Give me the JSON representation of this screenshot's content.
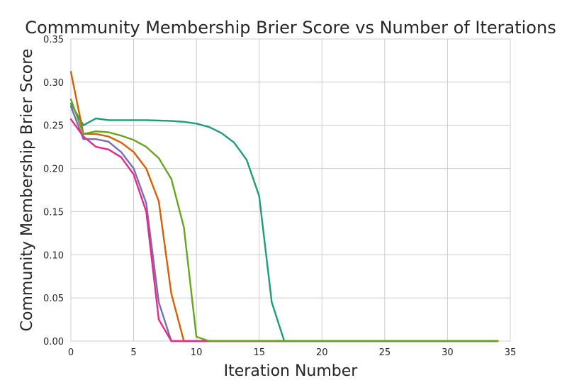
{
  "chart_data": {
    "type": "line",
    "title": "Commmunity Membership Brier Score vs Number of Iterations",
    "xlabel": "Iteration Number",
    "ylabel": "Community Membership Brier Score",
    "xlim": [
      0,
      35
    ],
    "ylim": [
      0,
      0.35
    ],
    "xticks": [
      0,
      5,
      10,
      15,
      20,
      25,
      30,
      35
    ],
    "yticks": [
      0.0,
      0.05,
      0.1,
      0.15,
      0.2,
      0.25,
      0.3,
      0.35
    ],
    "xtick_labels": [
      "0",
      "5",
      "10",
      "15",
      "20",
      "25",
      "30",
      "35"
    ],
    "ytick_labels": [
      "0.00",
      "0.05",
      "0.10",
      "0.15",
      "0.20",
      "0.25",
      "0.30",
      "0.35"
    ],
    "grid": true,
    "legend": "none",
    "series": [
      {
        "color": "#1b9e77",
        "x": [
          0,
          1,
          2,
          3,
          4,
          5,
          6,
          7,
          8,
          9,
          10,
          11,
          12,
          13,
          14,
          15,
          16,
          17,
          18,
          20,
          25,
          30,
          34
        ],
        "y": [
          0.275,
          0.25,
          0.258,
          0.256,
          0.256,
          0.256,
          0.256,
          0.2555,
          0.255,
          0.254,
          0.252,
          0.248,
          0.241,
          0.23,
          0.21,
          0.168,
          0.045,
          0.0,
          0.0,
          0.0,
          0.0,
          0.0,
          0.0
        ]
      },
      {
        "color": "#d95f02",
        "x": [
          0,
          1,
          2,
          3,
          4,
          5,
          6,
          7,
          8,
          9,
          10,
          15,
          20,
          25,
          30,
          34
        ],
        "y": [
          0.312,
          0.24,
          0.24,
          0.237,
          0.23,
          0.219,
          0.2,
          0.162,
          0.055,
          0.0,
          0.0,
          0.0,
          0.0,
          0.0,
          0.0,
          0.0
        ]
      },
      {
        "color": "#7570b3",
        "x": [
          0,
          1,
          2,
          3,
          4,
          5,
          6,
          7,
          8,
          9,
          10,
          15,
          20,
          25,
          30,
          34
        ],
        "y": [
          0.272,
          0.234,
          0.234,
          0.231,
          0.219,
          0.2,
          0.16,
          0.045,
          0.0,
          0.0,
          0.0,
          0.0,
          0.0,
          0.0,
          0.0,
          0.0
        ]
      },
      {
        "color": "#e7298a",
        "x": [
          0,
          1,
          2,
          3,
          4,
          5,
          6,
          7,
          8,
          9,
          10,
          15,
          20,
          25,
          30,
          34
        ],
        "y": [
          0.257,
          0.237,
          0.225,
          0.222,
          0.213,
          0.193,
          0.15,
          0.025,
          0.0,
          0.0,
          0.0,
          0.0,
          0.0,
          0.0,
          0.0,
          0.0
        ]
      },
      {
        "color": "#66a61e",
        "x": [
          0,
          1,
          2,
          3,
          4,
          5,
          6,
          7,
          8,
          9,
          10,
          11,
          12,
          15,
          20,
          25,
          30,
          34
        ],
        "y": [
          0.28,
          0.24,
          0.243,
          0.242,
          0.238,
          0.233,
          0.225,
          0.212,
          0.188,
          0.132,
          0.005,
          0.0,
          0.0,
          0.0,
          0.0,
          0.0,
          0.0,
          0.0
        ]
      }
    ]
  }
}
